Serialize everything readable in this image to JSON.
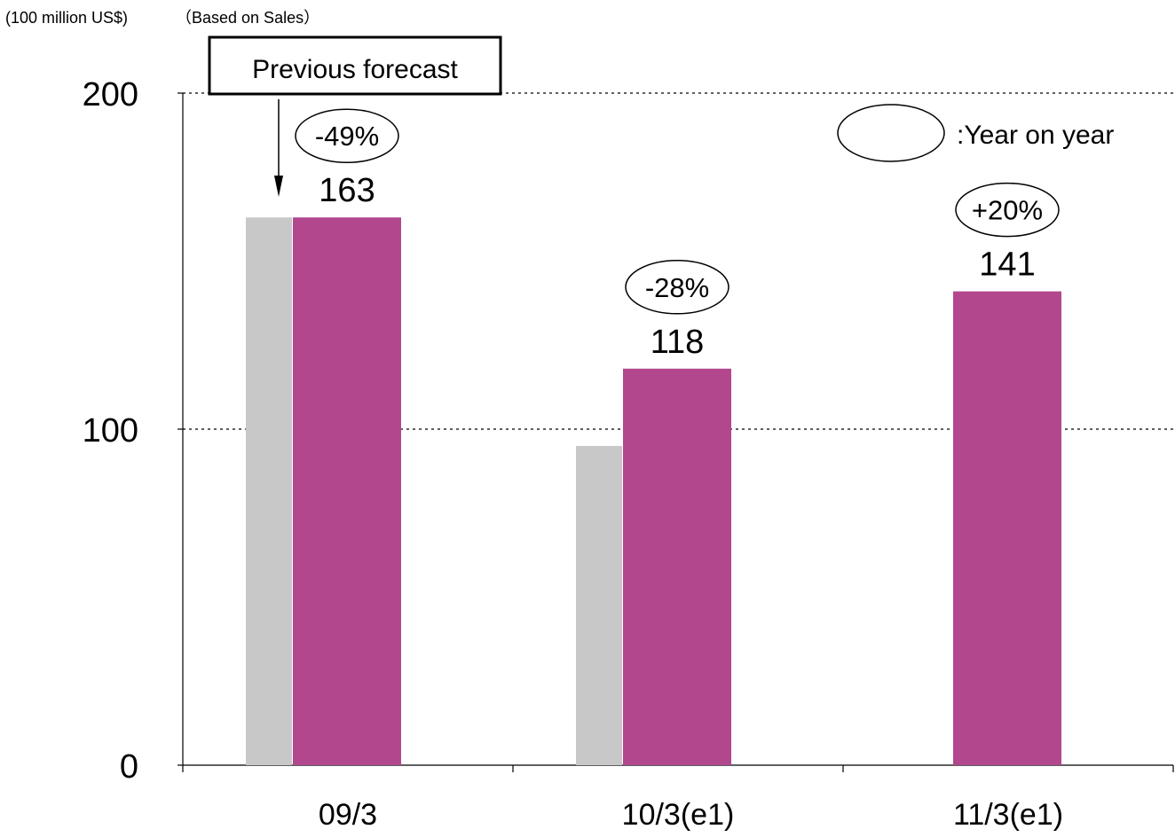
{
  "header": {
    "unit_label": "(100 million US$)",
    "basis_label": "（Based on Sales）"
  },
  "callout": {
    "label": "Previous forecast"
  },
  "legend": {
    "yoy_label": ":Year on year"
  },
  "chart_data": {
    "type": "bar",
    "categories": [
      "09/3",
      "10/3(e1)",
      "11/3(e1)"
    ],
    "series": [
      {
        "name": "Previous forecast",
        "color": "#c8c8c8",
        "values": [
          163,
          95,
          null
        ]
      },
      {
        "color": "#b2478e",
        "values": [
          163,
          118,
          141
        ]
      }
    ],
    "data_labels": [
      "163",
      "118",
      "141"
    ],
    "yoy_labels": [
      "-49%",
      "-28%",
      "+20%"
    ],
    "yticks": [
      0,
      100,
      200
    ],
    "ylim": [
      0,
      200
    ],
    "grid": "dotted horizontal",
    "legend_placement": "top-right"
  }
}
